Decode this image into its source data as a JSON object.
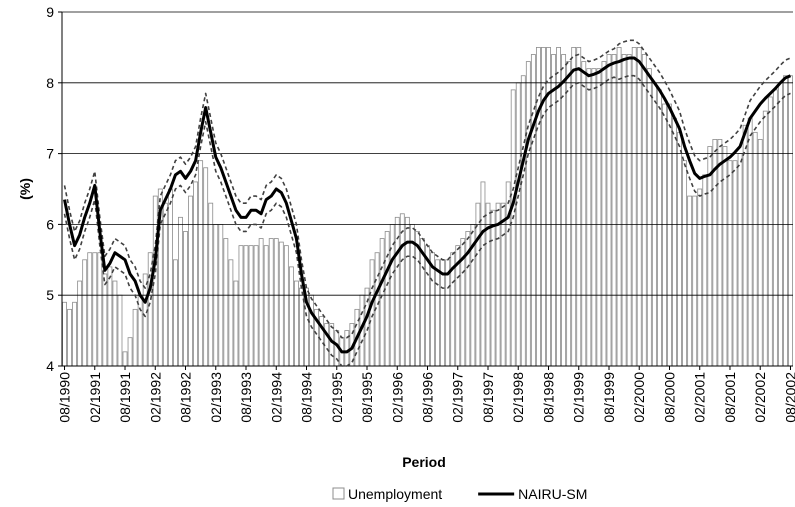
{
  "chart_data": {
    "type": "bar",
    "x_label": "Period",
    "y_label": "(%)",
    "ylim": [
      4,
      9
    ],
    "yticks": [
      4,
      5,
      6,
      7,
      8,
      9
    ],
    "grid": true,
    "categories": [
      "08/1990",
      null,
      null,
      null,
      null,
      null,
      "02/1991",
      null,
      null,
      null,
      null,
      null,
      "08/1991",
      null,
      null,
      null,
      null,
      null,
      "02/1992",
      null,
      null,
      null,
      null,
      null,
      "08/1992",
      null,
      null,
      null,
      null,
      null,
      "02/1993",
      null,
      null,
      null,
      null,
      null,
      "08/1993",
      null,
      null,
      null,
      null,
      null,
      "02/1994",
      null,
      null,
      null,
      null,
      null,
      "08/1994",
      null,
      null,
      null,
      null,
      null,
      "02/1995",
      null,
      null,
      null,
      null,
      null,
      "08/1995",
      null,
      null,
      null,
      null,
      null,
      "02/1996",
      null,
      null,
      null,
      null,
      null,
      "08/1996",
      null,
      null,
      null,
      null,
      null,
      "02/1997",
      null,
      null,
      null,
      null,
      null,
      "08/1997",
      null,
      null,
      null,
      null,
      null,
      "02/1998",
      null,
      null,
      null,
      null,
      null,
      "08/1998",
      null,
      null,
      null,
      null,
      null,
      "02/1999",
      null,
      null,
      null,
      null,
      null,
      "08/1999",
      null,
      null,
      null,
      null,
      null,
      "02/2000",
      null,
      null,
      null,
      null,
      null,
      "08/2000",
      null,
      null,
      null,
      null,
      null,
      "02/2001",
      null,
      null,
      null,
      null,
      null,
      "08/2001",
      null,
      null,
      null,
      null,
      null,
      "02/2002",
      null,
      null,
      null,
      null,
      null,
      "08/2002"
    ],
    "series": [
      {
        "name": "Unemployment",
        "type": "bar",
        "color": "#ffffff",
        "stroke": "#8c8c8c",
        "values": [
          4.9,
          4.8,
          4.9,
          5.2,
          5.5,
          5.6,
          5.6,
          5.6,
          5.3,
          5.4,
          5.2,
          5.0,
          4.2,
          4.4,
          4.8,
          5.0,
          5.3,
          5.6,
          6.4,
          6.5,
          6.3,
          6.5,
          5.5,
          6.1,
          5.9,
          6.4,
          6.6,
          6.9,
          6.8,
          6.3,
          6.0,
          6.0,
          5.8,
          5.5,
          5.2,
          5.7,
          5.7,
          5.7,
          5.7,
          5.8,
          5.7,
          5.8,
          5.8,
          5.75,
          5.7,
          5.4,
          5.2,
          5.1,
          5.1,
          5.0,
          4.8,
          4.7,
          4.6,
          4.6,
          4.5,
          4.4,
          4.5,
          4.6,
          4.8,
          5.0,
          5.1,
          5.5,
          5.6,
          5.8,
          5.9,
          6.0,
          6.1,
          6.15,
          6.1,
          6.0,
          5.9,
          5.8,
          5.7,
          5.6,
          5.5,
          5.5,
          5.5,
          5.6,
          5.7,
          5.8,
          5.9,
          6.0,
          6.3,
          6.6,
          6.3,
          6.2,
          6.3,
          6.3,
          6.6,
          7.9,
          8.0,
          8.1,
          8.3,
          8.4,
          8.5,
          8.5,
          8.5,
          8.4,
          8.5,
          8.4,
          8.3,
          8.5,
          8.5,
          8.3,
          8.2,
          8.2,
          8.2,
          8.3,
          8.4,
          8.4,
          8.5,
          8.4,
          8.4,
          8.5,
          8.5,
          8.4,
          8.2,
          8.0,
          7.9,
          7.7,
          7.7,
          7.5,
          7.3,
          6.9,
          6.4,
          6.4,
          6.5,
          6.7,
          7.1,
          7.2,
          7.2,
          7.1,
          6.9,
          6.9,
          7.0,
          7.4,
          7.5,
          7.3,
          7.2,
          7.6,
          7.8,
          7.9,
          8.0,
          8.1,
          8.1
        ]
      },
      {
        "name": "NAIRU-SM",
        "type": "line",
        "color": "#000000",
        "width": 3,
        "values": [
          6.35,
          6.0,
          5.7,
          5.85,
          6.1,
          6.3,
          6.55,
          5.9,
          5.35,
          5.45,
          5.6,
          5.55,
          5.5,
          5.3,
          5.2,
          5.0,
          4.9,
          5.1,
          5.5,
          6.2,
          6.35,
          6.5,
          6.7,
          6.75,
          6.65,
          6.75,
          6.9,
          7.3,
          7.65,
          7.3,
          6.95,
          6.8,
          6.6,
          6.4,
          6.2,
          6.1,
          6.1,
          6.2,
          6.2,
          6.15,
          6.35,
          6.4,
          6.5,
          6.45,
          6.3,
          6.05,
          5.8,
          5.3,
          4.9,
          4.75,
          4.65,
          4.55,
          4.45,
          4.35,
          4.3,
          4.2,
          4.2,
          4.25,
          4.4,
          4.55,
          4.7,
          4.9,
          5.05,
          5.2,
          5.35,
          5.5,
          5.6,
          5.7,
          5.75,
          5.75,
          5.7,
          5.6,
          5.5,
          5.4,
          5.35,
          5.3,
          5.3,
          5.38,
          5.45,
          5.52,
          5.6,
          5.7,
          5.8,
          5.9,
          5.95,
          5.98,
          6.0,
          6.05,
          6.1,
          6.3,
          6.6,
          6.9,
          7.2,
          7.4,
          7.6,
          7.75,
          7.85,
          7.9,
          7.95,
          8.02,
          8.1,
          8.18,
          8.2,
          8.15,
          8.1,
          8.12,
          8.15,
          8.2,
          8.25,
          8.28,
          8.3,
          8.33,
          8.35,
          8.35,
          8.3,
          8.2,
          8.1,
          8.0,
          7.9,
          7.78,
          7.65,
          7.5,
          7.35,
          7.1,
          6.9,
          6.72,
          6.65,
          6.68,
          6.7,
          6.78,
          6.85,
          6.9,
          6.95,
          7.02,
          7.1,
          7.3,
          7.5,
          7.6,
          7.7,
          7.78,
          7.85,
          7.92,
          8.0,
          8.07,
          8.1
        ]
      },
      {
        "type": "line",
        "color": "#404040",
        "width": 1.6,
        "dashed": true,
        "values": [
          6.55,
          6.2,
          5.9,
          6.05,
          6.3,
          6.5,
          6.75,
          6.1,
          5.55,
          5.65,
          5.8,
          5.75,
          5.7,
          5.5,
          5.4,
          5.2,
          5.1,
          5.3,
          5.7,
          6.4,
          6.55,
          6.7,
          6.9,
          6.95,
          6.85,
          6.95,
          7.1,
          7.5,
          7.85,
          7.5,
          7.15,
          7.0,
          6.8,
          6.6,
          6.4,
          6.3,
          6.3,
          6.4,
          6.4,
          6.35,
          6.55,
          6.6,
          6.7,
          6.65,
          6.5,
          6.25,
          6.0,
          5.5,
          5.1,
          4.95,
          4.85,
          4.75,
          4.65,
          4.55,
          4.5,
          4.4,
          4.4,
          4.45,
          4.6,
          4.75,
          4.9,
          5.1,
          5.25,
          5.4,
          5.55,
          5.7,
          5.8,
          5.9,
          5.95,
          5.95,
          5.9,
          5.8,
          5.7,
          5.6,
          5.55,
          5.5,
          5.5,
          5.58,
          5.65,
          5.72,
          5.8,
          5.9,
          6.0,
          6.1,
          6.15,
          6.18,
          6.2,
          6.25,
          6.3,
          6.5,
          6.8,
          7.1,
          7.4,
          7.6,
          7.8,
          7.95,
          8.05,
          8.1,
          8.15,
          8.22,
          8.3,
          8.38,
          8.4,
          8.35,
          8.3,
          8.32,
          8.35,
          8.4,
          8.45,
          8.48,
          8.55,
          8.58,
          8.6,
          8.6,
          8.55,
          8.45,
          8.35,
          8.25,
          8.15,
          8.03,
          7.9,
          7.75,
          7.6,
          7.35,
          7.15,
          6.97,
          6.9,
          6.93,
          6.95,
          7.03,
          7.1,
          7.15,
          7.2,
          7.27,
          7.35,
          7.55,
          7.75,
          7.85,
          7.95,
          8.03,
          8.1,
          8.17,
          8.25,
          8.32,
          8.35
        ]
      },
      {
        "type": "line",
        "color": "#404040",
        "width": 1.6,
        "dashed": true,
        "values": [
          6.15,
          5.8,
          5.5,
          5.65,
          5.9,
          6.1,
          6.35,
          5.7,
          5.15,
          5.25,
          5.4,
          5.35,
          5.3,
          5.1,
          5.0,
          4.8,
          4.7,
          4.9,
          5.3,
          6.0,
          6.15,
          6.3,
          6.5,
          6.55,
          6.45,
          6.55,
          6.7,
          7.1,
          7.45,
          7.1,
          6.75,
          6.6,
          6.4,
          6.2,
          6.0,
          5.9,
          5.9,
          6.0,
          6.0,
          5.95,
          6.15,
          6.2,
          6.3,
          6.25,
          6.1,
          5.85,
          5.6,
          5.1,
          4.7,
          4.55,
          4.45,
          4.35,
          4.25,
          4.15,
          4.1,
          4.0,
          4.0,
          4.05,
          4.2,
          4.35,
          4.5,
          4.7,
          4.85,
          5.0,
          5.15,
          5.3,
          5.4,
          5.5,
          5.55,
          5.55,
          5.5,
          5.4,
          5.3,
          5.2,
          5.15,
          5.1,
          5.1,
          5.18,
          5.25,
          5.32,
          5.4,
          5.5,
          5.6,
          5.7,
          5.75,
          5.78,
          5.8,
          5.85,
          5.9,
          6.1,
          6.4,
          6.7,
          7.0,
          7.2,
          7.4,
          7.55,
          7.65,
          7.7,
          7.75,
          7.82,
          7.9,
          7.98,
          8.0,
          7.95,
          7.9,
          7.92,
          7.95,
          8.0,
          8.05,
          8.08,
          8.05,
          8.08,
          8.1,
          8.1,
          8.05,
          7.95,
          7.85,
          7.75,
          7.65,
          7.53,
          7.4,
          7.25,
          7.1,
          6.85,
          6.65,
          6.47,
          6.4,
          6.43,
          6.45,
          6.53,
          6.6,
          6.65,
          6.7,
          6.77,
          6.85,
          7.05,
          7.25,
          7.35,
          7.45,
          7.53,
          7.6,
          7.67,
          7.75,
          7.82,
          7.85
        ]
      }
    ]
  }
}
